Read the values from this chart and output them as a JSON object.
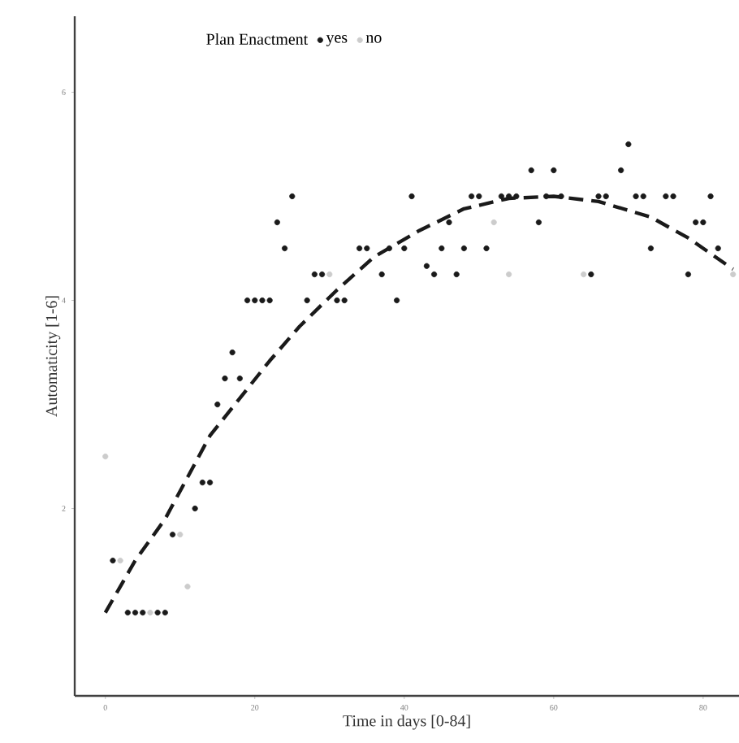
{
  "chart_data": {
    "type": "scatter",
    "xlabel": "Time in days [0-84]",
    "ylabel": "Automaticity [1-6]",
    "legend_title": "Plan Enactment",
    "legend": "top",
    "grid": false,
    "marker": "circle",
    "xlim": [
      -4.1,
      84.8
    ],
    "ylim": [
      0.2,
      6.73
    ],
    "xticks": [
      0,
      20,
      40,
      60,
      80
    ],
    "yticks": [
      2,
      4,
      6
    ],
    "series": [
      {
        "name": "yes",
        "color": "#1a1a1a",
        "x": [
          1,
          3,
          4,
          5,
          7,
          8,
          9,
          12,
          13,
          14,
          15,
          16,
          17,
          18,
          19,
          20,
          21,
          22,
          23,
          24,
          25,
          27,
          28,
          29,
          31,
          32,
          34,
          35,
          37,
          38,
          39,
          40,
          41,
          43,
          44,
          45,
          46,
          47,
          48,
          49,
          50,
          51,
          53,
          54,
          55,
          57,
          58,
          59,
          60,
          61,
          65,
          66,
          67,
          69,
          70,
          71,
          72,
          73,
          75,
          76,
          78,
          79,
          80,
          81,
          82
        ],
        "values": [
          1.5,
          1.0,
          1.0,
          1.0,
          1.0,
          1.0,
          1.75,
          2.0,
          2.25,
          2.25,
          3.0,
          3.25,
          3.5,
          3.25,
          4.0,
          4.0,
          4.0,
          4.0,
          4.75,
          4.5,
          5.0,
          4.0,
          4.25,
          4.25,
          4.0,
          4.0,
          4.5,
          4.5,
          4.25,
          4.5,
          4.0,
          4.5,
          5.0,
          4.33,
          4.25,
          4.5,
          4.75,
          4.25,
          4.5,
          5.0,
          5.0,
          4.5,
          5.0,
          5.0,
          5.0,
          5.25,
          4.75,
          5.0,
          5.25,
          5.0,
          4.25,
          5.0,
          5.0,
          5.25,
          5.5,
          5.0,
          5.0,
          4.5,
          5.0,
          5.0,
          4.25,
          4.75,
          4.75,
          5.0,
          4.5
        ]
      },
      {
        "name": "no",
        "color": "#cccccc",
        "x": [
          0,
          2,
          6,
          10,
          11,
          30,
          52,
          54,
          64,
          84
        ],
        "values": [
          2.5,
          1.5,
          1.0,
          1.75,
          1.25,
          4.25,
          4.75,
          4.25,
          4.25,
          4.25
        ]
      },
      {
        "type": "line",
        "color": "#1a1a1a",
        "line_style": "dashed",
        "marker": "none",
        "x": [
          0,
          4,
          8,
          11,
          14,
          18,
          22,
          26,
          31,
          36,
          42,
          48,
          54,
          60,
          66,
          73,
          78,
          84
        ],
        "values": [
          1.0,
          1.5,
          1.9,
          2.3,
          2.7,
          3.06,
          3.42,
          3.75,
          4.1,
          4.42,
          4.67,
          4.88,
          4.98,
          5.0,
          4.95,
          4.8,
          4.6,
          4.3
        ]
      }
    ]
  }
}
